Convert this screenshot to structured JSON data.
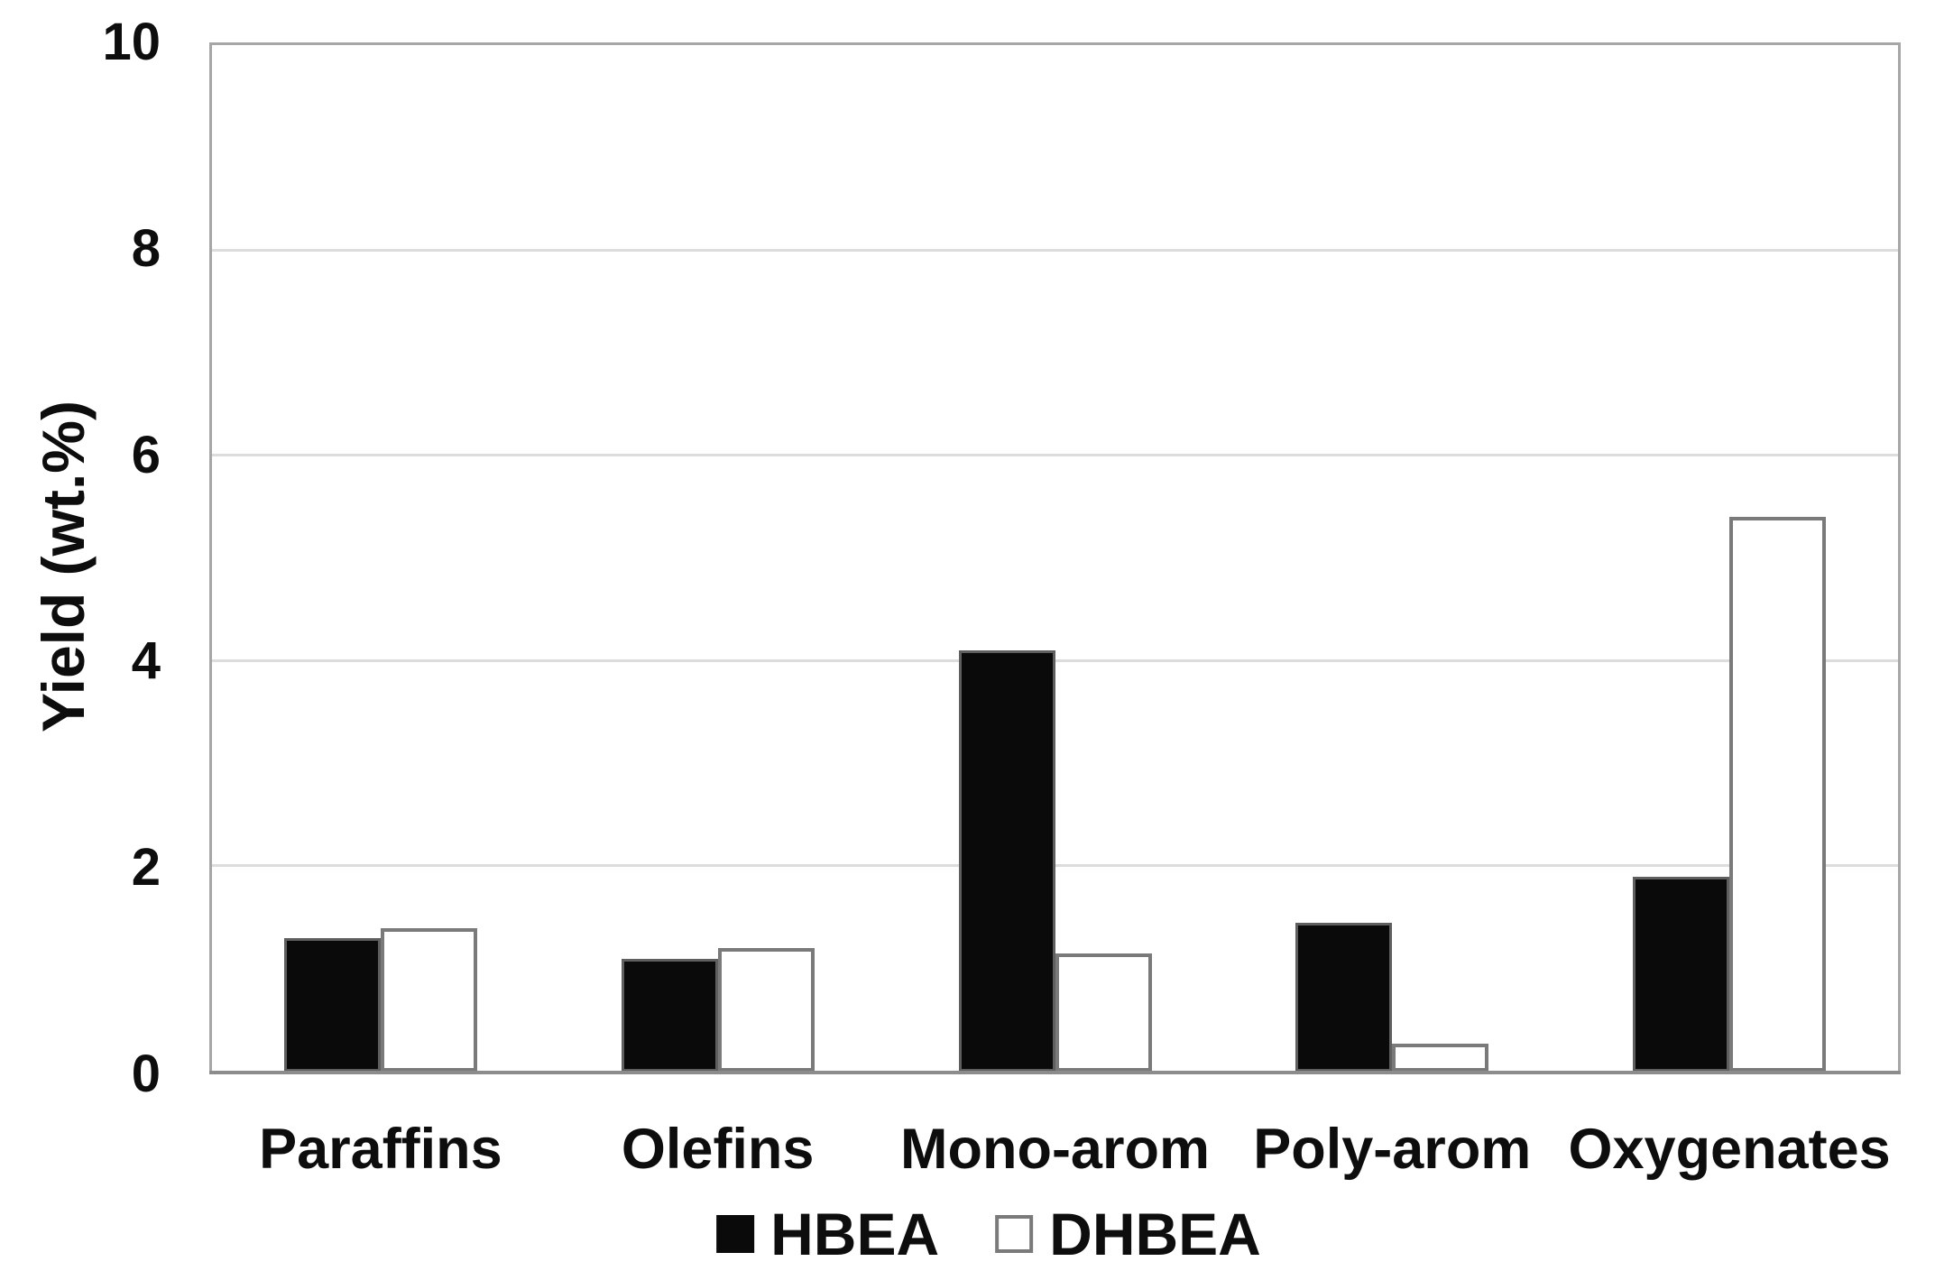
{
  "figure": {
    "background": "#ffffff"
  },
  "colors": {
    "bar_fill_hbea": "#0a0a0a",
    "bar_fill_dhbea": "#ffffff",
    "bar_border": "#7a7a7a",
    "gridline": "#dcdcdc",
    "plot_border": "#a6a6a6",
    "axis_line": "#8c8c8c",
    "text": "#0d0d0d"
  },
  "chart_data": {
    "type": "bar",
    "title": "",
    "xlabel": "",
    "ylabel": "Yield (wt.%)",
    "ylim": [
      0,
      10
    ],
    "yticks": [
      0,
      2,
      4,
      6,
      8,
      10
    ],
    "grid": "horizontal-light-gray",
    "legend_position": "bottom-center",
    "categories": [
      "Paraffins",
      "Olefins",
      "Mono-arom",
      "Poly-arom",
      "Oxygenates"
    ],
    "series": [
      {
        "name": "HBEA",
        "marker": "filled-black-square",
        "values": [
          1.3,
          1.1,
          4.1,
          1.45,
          1.9
        ]
      },
      {
        "name": "DHBEA",
        "marker": "outlined-white-square",
        "values": [
          1.4,
          1.2,
          1.15,
          0.27,
          5.4
        ]
      }
    ]
  }
}
